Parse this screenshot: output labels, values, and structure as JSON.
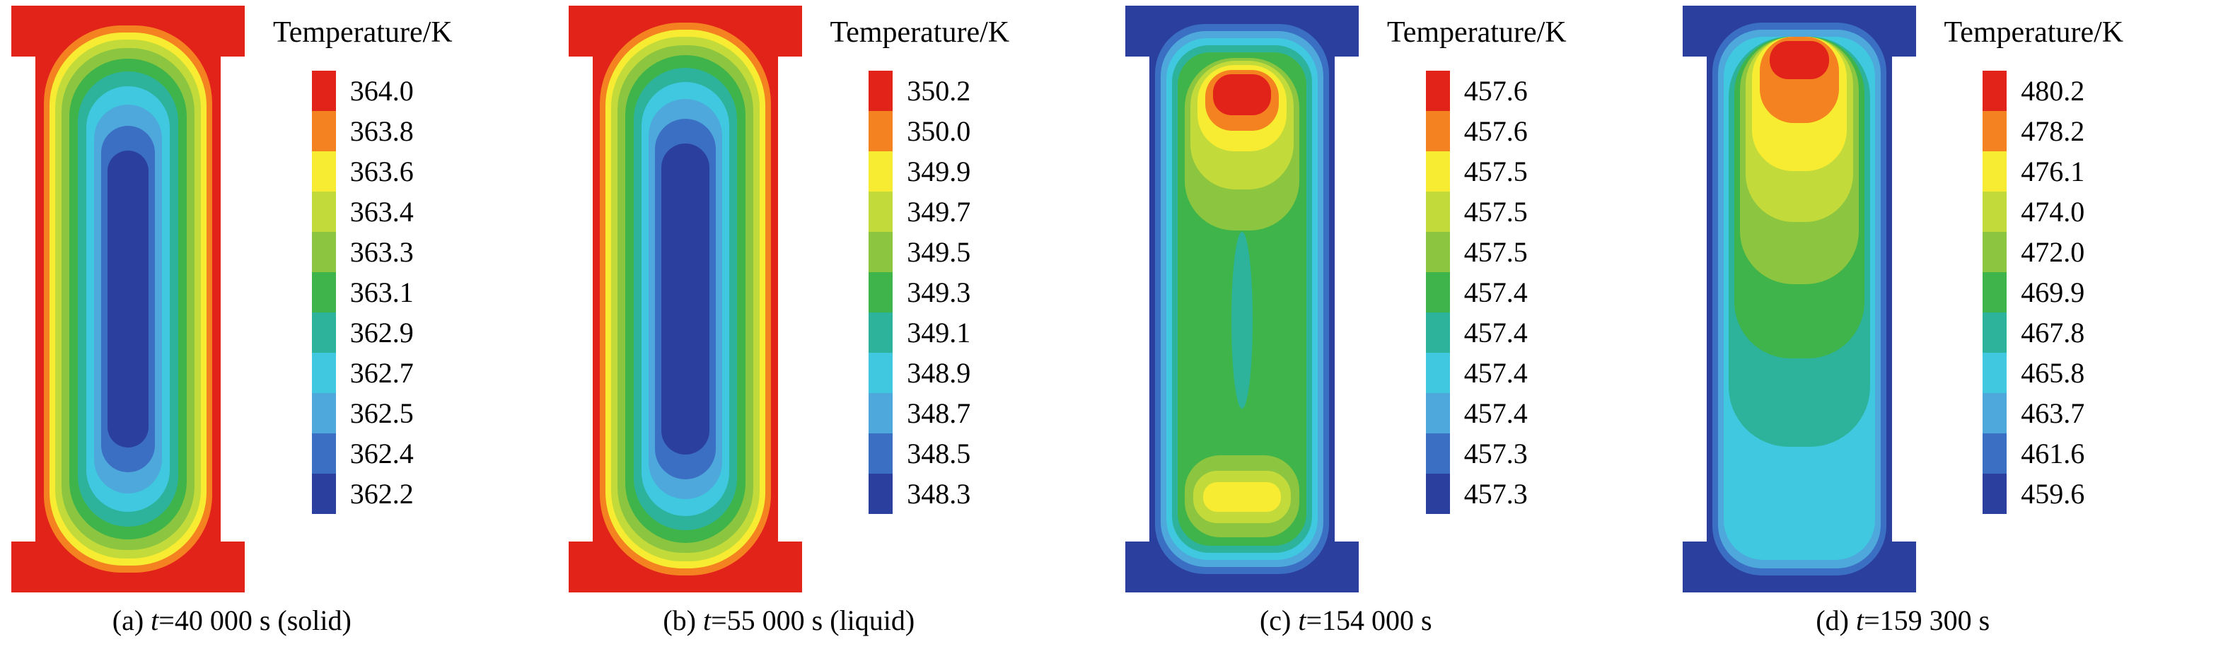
{
  "figure": {
    "background": "#ffffff",
    "colormap_max_to_min": [
      "#e2231a",
      "#f58220",
      "#f7ec31",
      "#c3db3a",
      "#8cc540",
      "#3eb44a",
      "#2db39b",
      "#3fc8e0",
      "#4fa8dc",
      "#3b6fc3",
      "#2b3f9e"
    ]
  },
  "chart_data": [
    {
      "type": "heatmap",
      "subtype": "temperature-contour",
      "title": "Temperature/K",
      "legend_position": "right",
      "legend_levels": [
        "364.0",
        "363.8",
        "363.6",
        "363.4",
        "363.3",
        "363.1",
        "362.9",
        "362.7",
        "362.5",
        "362.4",
        "362.2"
      ],
      "value_range": [
        362.2,
        364.0
      ],
      "pattern": "hot walls (red) with concentric cooler rings toward a cold dark-blue core",
      "caption": "(a) t=40 000 s (solid)",
      "caption_parts": {
        "prefix": "(a) ",
        "variable": "t",
        "rest": "=40 000 s (solid)"
      }
    },
    {
      "type": "heatmap",
      "subtype": "temperature-contour",
      "title": "Temperature/K",
      "legend_position": "right",
      "legend_levels": [
        "350.2",
        "350.0",
        "349.9",
        "349.7",
        "349.5",
        "349.3",
        "349.1",
        "348.9",
        "348.7",
        "348.5",
        "348.3"
      ],
      "value_range": [
        348.3,
        350.2
      ],
      "pattern": "hot walls (red) with concentric cooler rings toward a cold dark-blue core",
      "caption": "(b) t=55 000 s (liquid)",
      "caption_parts": {
        "prefix": "(b) ",
        "variable": "t",
        "rest": "=55 000 s (liquid)"
      }
    },
    {
      "type": "heatmap",
      "subtype": "temperature-contour",
      "title": "Temperature/K",
      "legend_position": "right",
      "legend_levels": [
        "457.6",
        "457.6",
        "457.5",
        "457.5",
        "457.5",
        "457.4",
        "457.4",
        "457.4",
        "457.4",
        "457.3",
        "457.3"
      ],
      "value_range": [
        457.3,
        457.6
      ],
      "pattern": "cold blue walls, green interior, hot red spot near the top, warm band near the bottom",
      "caption": "(c) t=154 000 s",
      "caption_parts": {
        "prefix": "(c) ",
        "variable": "t",
        "rest": "=154 000 s"
      }
    },
    {
      "type": "heatmap",
      "subtype": "temperature-contour",
      "title": "Temperature/K",
      "legend_position": "right",
      "legend_levels": [
        "480.2",
        "478.2",
        "476.1",
        "474.0",
        "472.0",
        "469.9",
        "467.8",
        "465.8",
        "463.7",
        "461.6",
        "459.6"
      ],
      "value_range": [
        459.6,
        480.2
      ],
      "pattern": "cold blue walls, hot red spot at top with nested warm plumes extending downward into cyan",
      "caption": "(d) t=159 300 s",
      "caption_parts": {
        "prefix": "(d) ",
        "variable": "t",
        "rest": "=159 300 s"
      }
    }
  ]
}
